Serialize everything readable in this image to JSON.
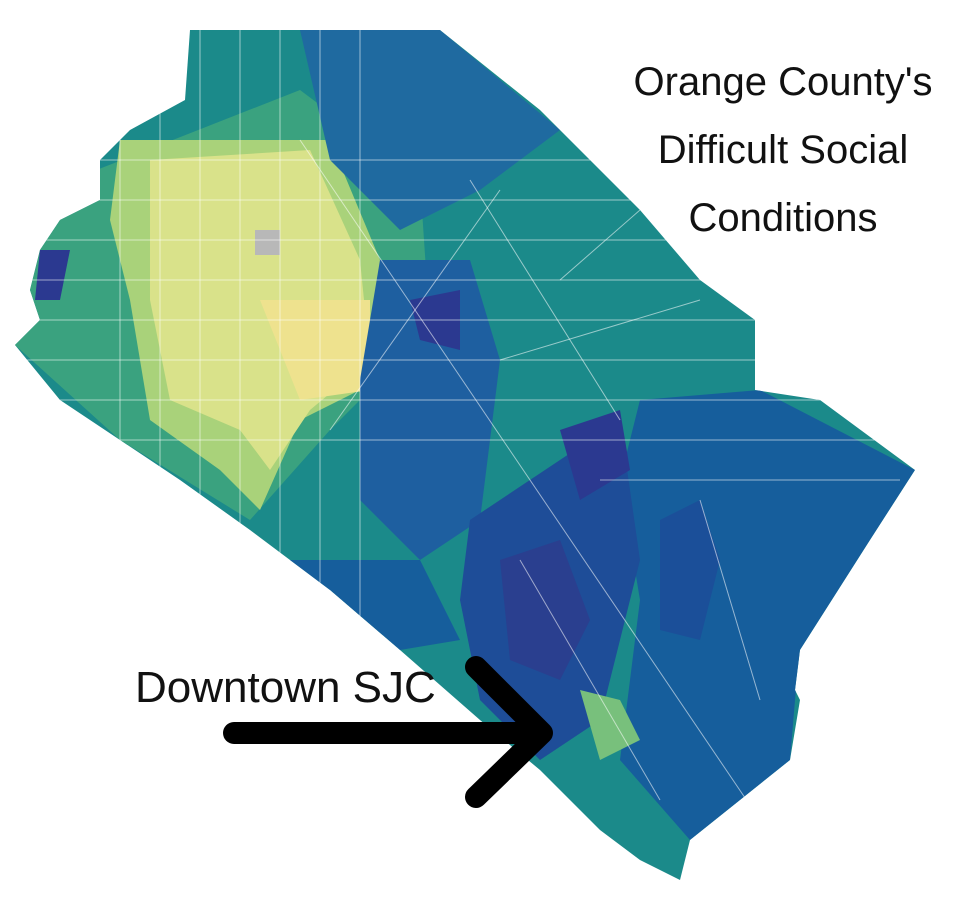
{
  "title": {
    "lines": [
      "Orange County's",
      "Difficult Social",
      "Conditions"
    ]
  },
  "annotation": {
    "label": "Downtown SJC"
  }
}
